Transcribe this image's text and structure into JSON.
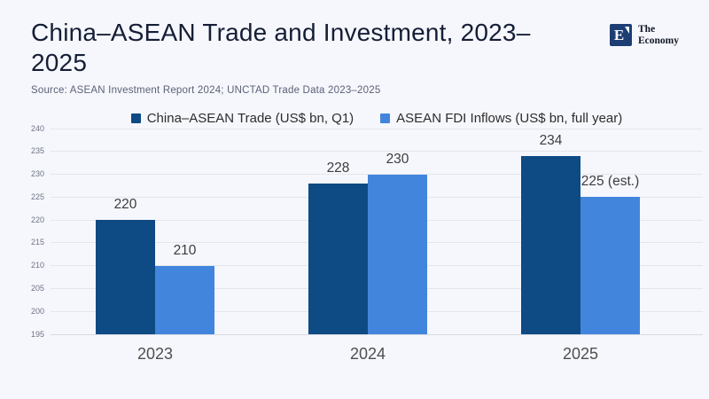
{
  "header": {
    "title": "China–ASEAN Trade and Investment, 2023–2025",
    "source": "Source:  ASEAN Investment Report 2024; UNCTAD Trade Data 2023–2025"
  },
  "brand": {
    "logo_letter": "E",
    "name": "The Economy",
    "logo_color": "#1c3e74"
  },
  "chart_data": {
    "type": "bar",
    "title": "China–ASEAN Trade and Investment, 2023–2025",
    "categories": [
      "2023",
      "2024",
      "2025"
    ],
    "series": [
      {
        "name": "China–ASEAN Trade (US$ bn, Q1)",
        "color": "#0e4a84",
        "values": [
          220,
          228,
          234
        ],
        "labels": [
          "220",
          "228",
          "234"
        ]
      },
      {
        "name": "ASEAN FDI Inflows (US$ bn, full year)",
        "color": "#4285dc",
        "values": [
          210,
          230,
          225
        ],
        "labels": [
          "210",
          "230",
          "225 (est.)"
        ]
      }
    ],
    "ylim": [
      195,
      240
    ],
    "ytick_step": 5,
    "grid": true,
    "legend_position": "top",
    "xlabel": "",
    "ylabel": ""
  }
}
